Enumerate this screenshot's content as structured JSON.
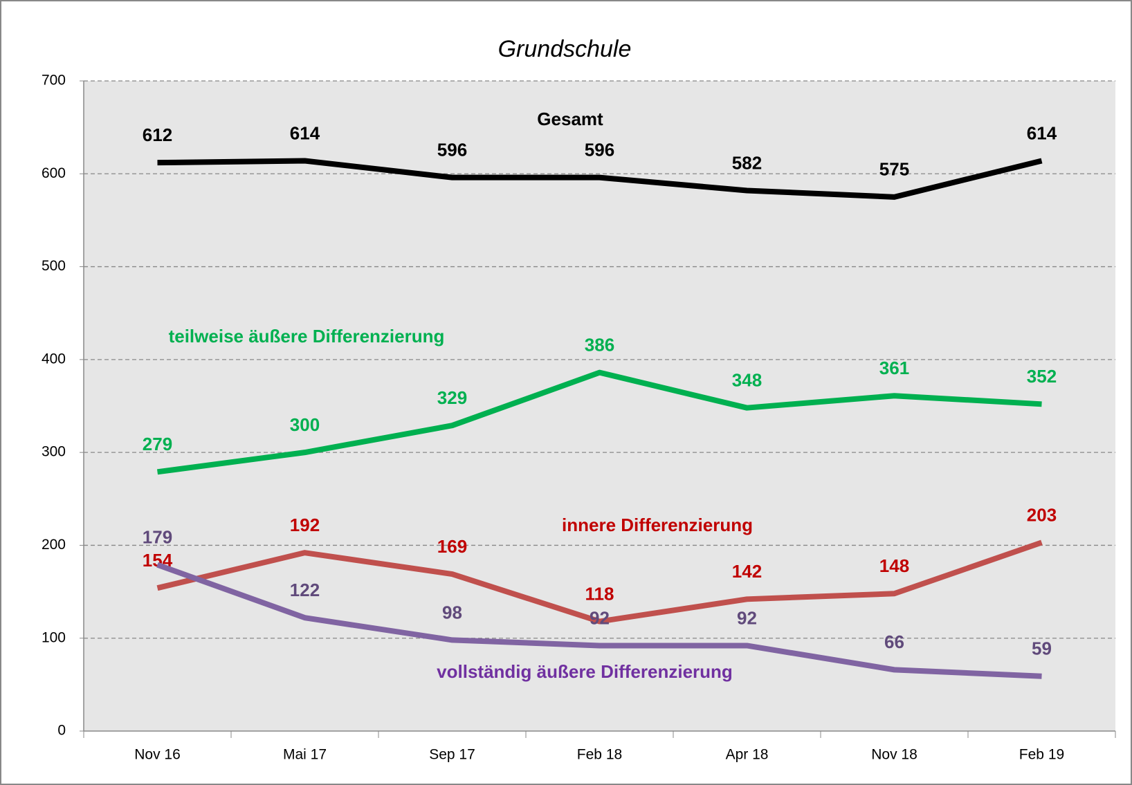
{
  "chart_data": {
    "type": "line",
    "title": "Grundschule",
    "categories": [
      "Nov 16",
      "Mai 17",
      "Sep 17",
      "Feb 18",
      "Apr 18",
      "Nov 18",
      "Feb 19"
    ],
    "series": [
      {
        "name": "Gesamt",
        "color": "#000000",
        "label_color": "#000000",
        "values": [
          612,
          614,
          596,
          596,
          582,
          575,
          614
        ]
      },
      {
        "name": "teilweise äußere Differenzierung",
        "color": "#00b050",
        "label_color": "#00b050",
        "values": [
          279,
          300,
          329,
          386,
          348,
          361,
          352
        ]
      },
      {
        "name": "innere Differenzierung",
        "color": "#c0504d",
        "label_color": "#c00000",
        "values": [
          154,
          192,
          169,
          118,
          142,
          148,
          203
        ]
      },
      {
        "name": "vollständig äußere Differenzierung",
        "color": "#8064a2",
        "label_color": "#604a7b",
        "name_color": "#7030a0",
        "values": [
          179,
          122,
          98,
          92,
          92,
          66,
          59
        ]
      }
    ],
    "ylim": [
      0,
      700
    ],
    "yticks": [
      0,
      100,
      200,
      300,
      400,
      500,
      600,
      700
    ],
    "grid": true
  }
}
